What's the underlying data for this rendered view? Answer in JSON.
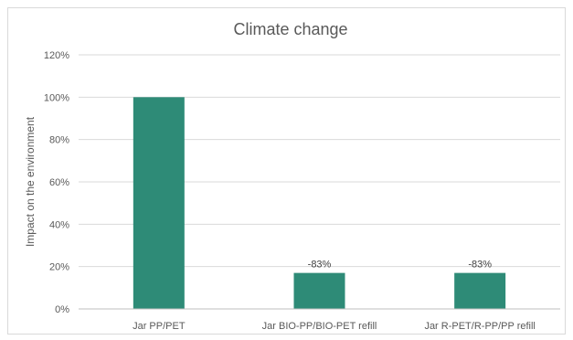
{
  "chart_data": {
    "type": "bar",
    "title": "Climate change",
    "xlabel": "",
    "ylabel": "Impact on the environment",
    "categories": [
      "Jar PP/PET",
      "Jar BIO-PP/BIO-PET refill",
      "Jar R-PET/R-PP/PP refill"
    ],
    "values": [
      100,
      17,
      17
    ],
    "data_labels": [
      "",
      "-83%",
      "-83%"
    ],
    "ylim": [
      0,
      120
    ],
    "yticks": [
      0,
      20,
      40,
      60,
      80,
      100,
      120
    ],
    "ytick_labels": [
      "0%",
      "20%",
      "40%",
      "60%",
      "80%",
      "100%",
      "120%"
    ],
    "bar_color": "#2e8b77",
    "grid": true,
    "legend": "none"
  }
}
